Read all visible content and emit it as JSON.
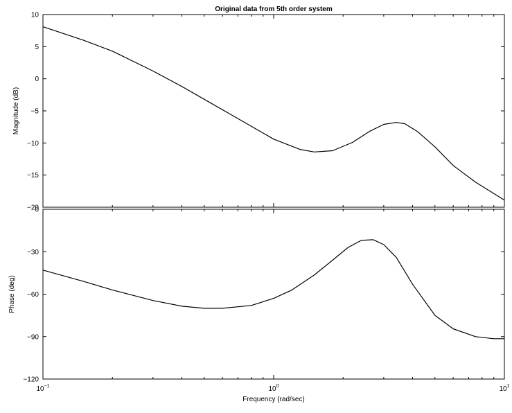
{
  "chart_data": [
    {
      "type": "line",
      "title": "Original data from 5th order system",
      "ylabel": "Magnitude (dB)",
      "xlabel": "",
      "x_scale": "log",
      "xlim": [
        0.1,
        10
      ],
      "ylim": [
        -20,
        10
      ],
      "yticks": [
        -20,
        -15,
        -10,
        -5,
        0,
        5,
        10
      ],
      "ytick_labels": [
        "−20",
        "−15",
        "−10",
        "−5",
        "0",
        "5",
        "10"
      ],
      "grid": false,
      "series": [
        {
          "x": [
            0.1,
            0.15,
            0.2,
            0.3,
            0.4,
            0.5,
            0.7,
            1.0,
            1.3,
            1.5,
            1.8,
            2.2,
            2.6,
            3.0,
            3.4,
            3.7,
            4.2,
            5.0,
            6.0,
            7.5,
            10.0
          ],
          "y": [
            8.1,
            6.0,
            4.3,
            1.2,
            -1.2,
            -3.2,
            -6.2,
            -9.4,
            -11.0,
            -11.4,
            -11.2,
            -9.9,
            -8.2,
            -7.1,
            -6.8,
            -7.0,
            -8.2,
            -10.6,
            -13.5,
            -16.1,
            -18.9
          ]
        }
      ]
    },
    {
      "type": "line",
      "title": "",
      "ylabel": "Phase (deg)",
      "xlabel": "Frequency (rad/sec)",
      "x_scale": "log",
      "xlim": [
        0.1,
        10
      ],
      "xtick_labels": [
        {
          "base": "10",
          "exp": "−1"
        },
        {
          "base": "10",
          "exp": "0"
        },
        {
          "base": "10",
          "exp": "1"
        }
      ],
      "ylim": [
        -120,
        0
      ],
      "yticks": [
        -120,
        -90,
        -60,
        -30,
        0
      ],
      "ytick_labels": [
        "−120",
        "−90",
        "−60",
        "−30",
        "0"
      ],
      "grid": false,
      "series": [
        {
          "x": [
            0.1,
            0.15,
            0.2,
            0.3,
            0.4,
            0.5,
            0.6,
            0.8,
            1.0,
            1.2,
            1.5,
            1.8,
            2.1,
            2.4,
            2.7,
            3.0,
            3.4,
            4.0,
            5.0,
            6.0,
            7.5,
            9.0,
            10.0
          ],
          "y": [
            -43,
            -51,
            -57,
            -64.5,
            -68.5,
            -70,
            -70,
            -68,
            -63,
            -57,
            -46.5,
            -36,
            -27,
            -22,
            -21.5,
            -25,
            -34,
            -53,
            -75,
            -84.5,
            -90,
            -91.5,
            -91.5
          ]
        }
      ]
    }
  ]
}
